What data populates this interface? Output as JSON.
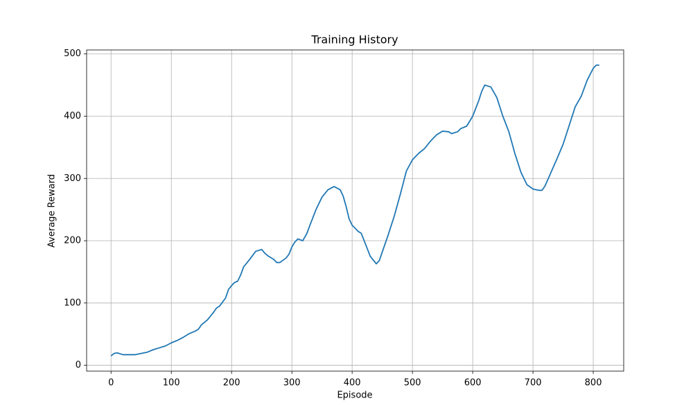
{
  "chart_data": {
    "type": "line",
    "title": "Training History",
    "x_label": "Episode",
    "y_label": "Average Reward",
    "color": "#1f77b4",
    "grid": true,
    "xlim": [
      -40.5,
      850.5
    ],
    "ylim": [
      -9.4,
      506.4
    ],
    "xticks": [
      0,
      100,
      200,
      300,
      400,
      500,
      600,
      700,
      800
    ],
    "yticks": [
      0,
      100,
      200,
      300,
      400,
      500
    ],
    "x": [
      0,
      5,
      10,
      20,
      30,
      40,
      50,
      60,
      70,
      80,
      90,
      100,
      110,
      120,
      130,
      140,
      145,
      150,
      160,
      170,
      175,
      180,
      190,
      195,
      200,
      205,
      210,
      215,
      220,
      230,
      240,
      250,
      255,
      260,
      270,
      275,
      280,
      290,
      295,
      300,
      305,
      310,
      318,
      325,
      330,
      340,
      350,
      360,
      370,
      380,
      385,
      390,
      395,
      400,
      410,
      415,
      420,
      430,
      440,
      445,
      450,
      460,
      470,
      480,
      490,
      500,
      510,
      520,
      530,
      540,
      550,
      560,
      565,
      575,
      580,
      590,
      600,
      610,
      615,
      620,
      630,
      640,
      650,
      660,
      670,
      680,
      690,
      700,
      710,
      715,
      720,
      730,
      740,
      750,
      760,
      770,
      780,
      790,
      800,
      805,
      810
    ],
    "values": [
      15,
      19,
      20,
      17,
      17,
      17,
      19,
      21,
      25,
      28,
      31,
      36,
      40,
      45,
      51,
      55,
      58,
      65,
      73,
      85,
      92,
      95,
      108,
      122,
      128,
      133,
      135,
      145,
      158,
      170,
      183,
      186,
      180,
      176,
      170,
      165,
      165,
      172,
      178,
      190,
      198,
      203,
      200,
      212,
      225,
      250,
      270,
      282,
      287,
      282,
      272,
      255,
      235,
      225,
      215,
      212,
      200,
      175,
      163,
      168,
      182,
      210,
      240,
      275,
      312,
      330,
      340,
      348,
      360,
      370,
      376,
      375,
      372,
      375,
      380,
      384,
      400,
      425,
      440,
      450,
      447,
      430,
      400,
      375,
      340,
      310,
      290,
      283,
      281,
      281,
      288,
      310,
      332,
      355,
      385,
      415,
      432,
      458,
      477,
      482,
      482
    ]
  }
}
